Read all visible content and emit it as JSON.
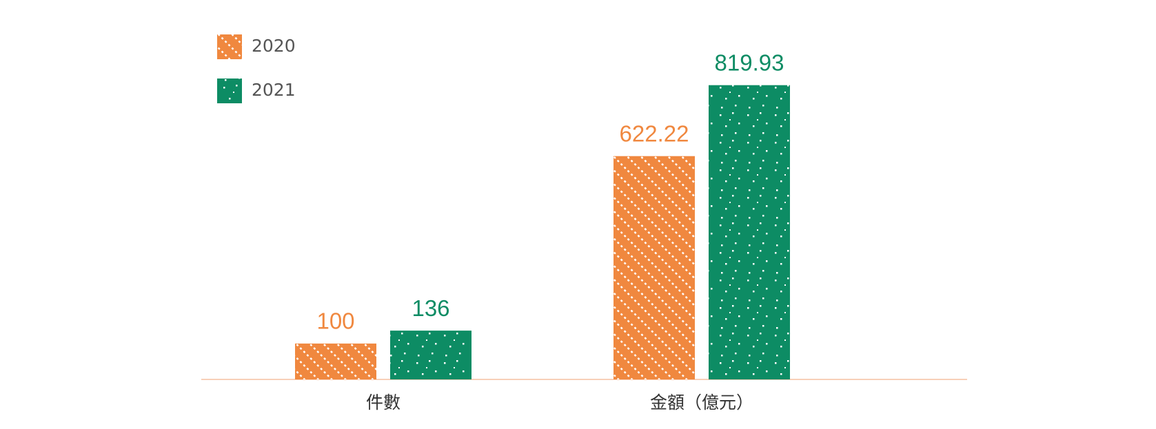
{
  "chart_data": {
    "type": "bar",
    "categories": [
      "件數",
      "金額（億元）"
    ],
    "series": [
      {
        "name": "2020",
        "color": "#f0883f",
        "values": [
          100,
          622.22
        ]
      },
      {
        "name": "2021",
        "color": "#0d8c64",
        "values": [
          136,
          819.93
        ]
      }
    ],
    "ylim": [
      0,
      850
    ],
    "grid": false,
    "legend": "top-left"
  }
}
